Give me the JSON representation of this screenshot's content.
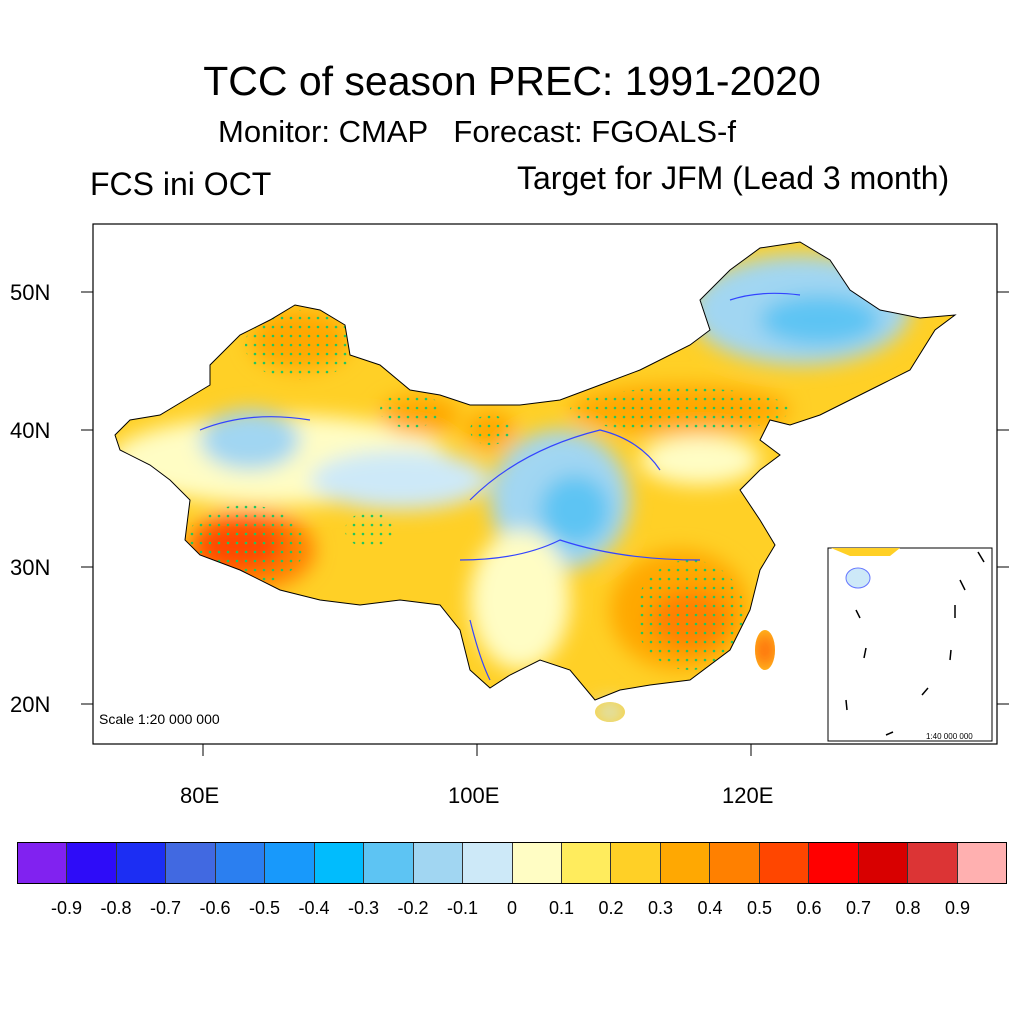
{
  "title": "TCC of season PREC: 1991-2020",
  "subtitle": "Monitor: CMAP   Forecast: FGOALS-f",
  "left_label": "FCS ini OCT",
  "right_label": "Target for JFM (Lead 3 month)",
  "map": {
    "lat_labels": [
      "50N",
      "40N",
      "30N",
      "20N"
    ],
    "lon_labels": [
      "80E",
      "100E",
      "120E"
    ],
    "scale_main": "Scale 1:20 000 000",
    "scale_inset": "1:40 000 000",
    "stipple_color": "#22c55e",
    "boundary_color": "#3344ff"
  },
  "colorbar": {
    "colors": [
      "#8122f0",
      "#2e0cf8",
      "#1c2ef3",
      "#4169e1",
      "#2b7ff0",
      "#1899fb",
      "#01bcfd",
      "#5dc4f3",
      "#a1d6f2",
      "#cde9f8",
      "#fffdc4",
      "#ffec5d",
      "#ffd026",
      "#ffa802",
      "#ff8000",
      "#ff4600",
      "#ff0000",
      "#d80000",
      "#dc3435",
      "#ffb0b0"
    ],
    "labels": [
      "-0.9",
      "-0.8",
      "-0.7",
      "-0.6",
      "-0.5",
      "-0.4",
      "-0.3",
      "-0.2",
      "-0.1",
      "0",
      "0.1",
      "0.2",
      "0.3",
      "0.4",
      "0.5",
      "0.6",
      "0.7",
      "0.8",
      "0.9"
    ]
  }
}
